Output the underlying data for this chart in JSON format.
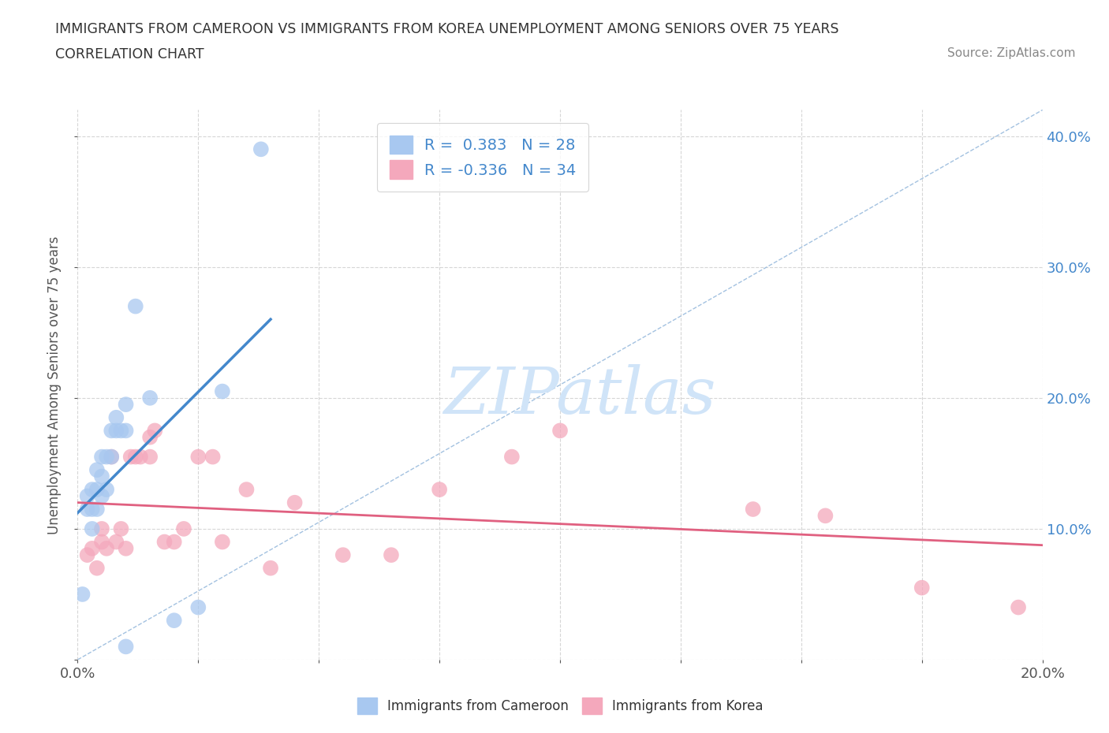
{
  "title_line1": "IMMIGRANTS FROM CAMEROON VS IMMIGRANTS FROM KOREA UNEMPLOYMENT AMONG SENIORS OVER 75 YEARS",
  "title_line2": "CORRELATION CHART",
  "source_text": "Source: ZipAtlas.com",
  "ylabel": "Unemployment Among Seniors over 75 years",
  "xlim": [
    0,
    0.2
  ],
  "ylim": [
    0,
    0.42
  ],
  "x_ticks": [
    0.0,
    0.025,
    0.05,
    0.075,
    0.1,
    0.125,
    0.15,
    0.175,
    0.2
  ],
  "y_ticks": [
    0.0,
    0.1,
    0.2,
    0.3,
    0.4
  ],
  "r_cameroon": 0.383,
  "n_cameroon": 28,
  "r_korea": -0.336,
  "n_korea": 34,
  "cameroon_color": "#a8c8f0",
  "korea_color": "#f4a8bc",
  "cameroon_line_color": "#4488cc",
  "korea_line_color": "#e06080",
  "diag_color": "#99bbdd",
  "right_axis_color": "#4488cc",
  "watermark_color": "#d0e4f8",
  "background_color": "#ffffff",
  "grid_color": "#cccccc",
  "cameroon_x": [
    0.001,
    0.002,
    0.002,
    0.003,
    0.003,
    0.003,
    0.004,
    0.004,
    0.004,
    0.005,
    0.005,
    0.005,
    0.006,
    0.006,
    0.007,
    0.007,
    0.008,
    0.008,
    0.009,
    0.01,
    0.01,
    0.012,
    0.015,
    0.02,
    0.025,
    0.03,
    0.038,
    0.01
  ],
  "cameroon_y": [
    0.05,
    0.115,
    0.125,
    0.1,
    0.115,
    0.13,
    0.115,
    0.13,
    0.145,
    0.125,
    0.14,
    0.155,
    0.13,
    0.155,
    0.155,
    0.175,
    0.175,
    0.185,
    0.175,
    0.175,
    0.195,
    0.27,
    0.2,
    0.03,
    0.04,
    0.205,
    0.39,
    0.01
  ],
  "korea_x": [
    0.002,
    0.003,
    0.004,
    0.005,
    0.005,
    0.006,
    0.007,
    0.008,
    0.009,
    0.01,
    0.011,
    0.012,
    0.013,
    0.015,
    0.015,
    0.016,
    0.018,
    0.02,
    0.022,
    0.025,
    0.028,
    0.03,
    0.035,
    0.04,
    0.045,
    0.055,
    0.065,
    0.075,
    0.09,
    0.1,
    0.14,
    0.155,
    0.175,
    0.195
  ],
  "korea_y": [
    0.08,
    0.085,
    0.07,
    0.09,
    0.1,
    0.085,
    0.155,
    0.09,
    0.1,
    0.085,
    0.155,
    0.155,
    0.155,
    0.155,
    0.17,
    0.175,
    0.09,
    0.09,
    0.1,
    0.155,
    0.155,
    0.09,
    0.13,
    0.07,
    0.12,
    0.08,
    0.08,
    0.13,
    0.155,
    0.175,
    0.115,
    0.11,
    0.055,
    0.04
  ]
}
